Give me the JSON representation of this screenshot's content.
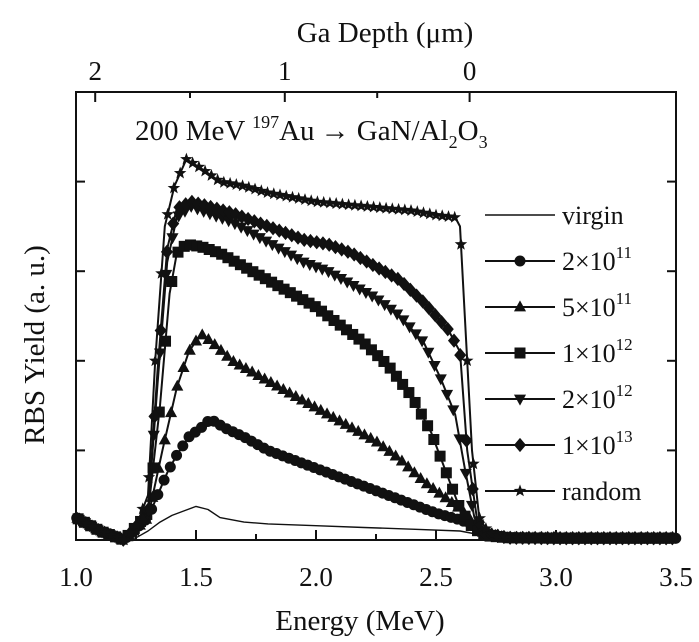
{
  "chart_data": {
    "type": "line",
    "title": "",
    "annotation": {
      "prefix": "200 MeV ",
      "mass": "197",
      "element": "Au",
      "arrow": "→",
      "target_a": " GaN/Al",
      "sub_a": "2",
      "target_b": "O",
      "sub_b": "3"
    },
    "xlabel": "Energy (MeV)",
    "ylabel": "RBS Yield (a. u.)",
    "top_axis_label": "Ga Depth (μm)",
    "xlim": [
      1.0,
      3.5
    ],
    "ylim": [
      0,
      1.0
    ],
    "x_ticks": [
      1.0,
      1.5,
      2.0,
      2.5,
      3.0,
      3.5
    ],
    "x_tick_labels": [
      "1.0",
      "1.5",
      "2.0",
      "2.5",
      "3.0",
      "3.5"
    ],
    "top_ticks": [
      {
        "energy": 1.08,
        "label": "2"
      },
      {
        "energy": 1.87,
        "label": "1"
      },
      {
        "energy": 2.64,
        "label": "0"
      }
    ],
    "y_ticks": [
      0.2,
      0.4,
      0.6,
      0.8,
      1.0
    ],
    "grid": false,
    "legend_position": "right",
    "series": [
      {
        "name": "virgin",
        "marker": "none",
        "stroke": 1.4,
        "points": [
          [
            1.0,
            0.05
          ],
          [
            1.1,
            0.02
          ],
          [
            1.2,
            0.0
          ],
          [
            1.25,
            0.005
          ],
          [
            1.3,
            0.02
          ],
          [
            1.35,
            0.04
          ],
          [
            1.4,
            0.055
          ],
          [
            1.45,
            0.065
          ],
          [
            1.5,
            0.075
          ],
          [
            1.55,
            0.068
          ],
          [
            1.6,
            0.05
          ],
          [
            1.7,
            0.04
          ],
          [
            1.8,
            0.036
          ],
          [
            2.0,
            0.032
          ],
          [
            2.2,
            0.028
          ],
          [
            2.4,
            0.024
          ],
          [
            2.6,
            0.02
          ],
          [
            2.7,
            0.01
          ],
          [
            2.8,
            0.005
          ],
          [
            3.0,
            0.004
          ],
          [
            3.5,
            0.004
          ]
        ]
      },
      {
        "name": "2×10¹¹",
        "label_base": "2×10",
        "label_exp": "11",
        "marker": "circle",
        "points": [
          [
            1.0,
            0.05
          ],
          [
            1.1,
            0.02
          ],
          [
            1.2,
            0.0
          ],
          [
            1.3,
            0.05
          ],
          [
            1.38,
            0.15
          ],
          [
            1.42,
            0.19
          ],
          [
            1.47,
            0.23
          ],
          [
            1.52,
            0.25
          ],
          [
            1.56,
            0.27
          ],
          [
            1.62,
            0.25
          ],
          [
            1.7,
            0.23
          ],
          [
            1.8,
            0.2
          ],
          [
            1.9,
            0.18
          ],
          [
            2.0,
            0.16
          ],
          [
            2.1,
            0.14
          ],
          [
            2.2,
            0.12
          ],
          [
            2.3,
            0.1
          ],
          [
            2.4,
            0.08
          ],
          [
            2.5,
            0.06
          ],
          [
            2.6,
            0.045
          ],
          [
            2.65,
            0.035
          ],
          [
            2.7,
            0.015
          ],
          [
            2.8,
            0.005
          ],
          [
            3.0,
            0.004
          ],
          [
            3.5,
            0.004
          ]
        ]
      },
      {
        "name": "5×10¹¹",
        "label_base": "5×10",
        "label_exp": "11",
        "marker": "triangle",
        "points": [
          [
            1.0,
            0.05
          ],
          [
            1.1,
            0.02
          ],
          [
            1.2,
            0.0
          ],
          [
            1.3,
            0.05
          ],
          [
            1.36,
            0.2
          ],
          [
            1.42,
            0.34
          ],
          [
            1.47,
            0.42
          ],
          [
            1.52,
            0.46
          ],
          [
            1.57,
            0.44
          ],
          [
            1.65,
            0.4
          ],
          [
            1.75,
            0.37
          ],
          [
            1.85,
            0.34
          ],
          [
            1.95,
            0.31
          ],
          [
            2.05,
            0.28
          ],
          [
            2.15,
            0.25
          ],
          [
            2.25,
            0.22
          ],
          [
            2.35,
            0.18
          ],
          [
            2.45,
            0.13
          ],
          [
            2.55,
            0.09
          ],
          [
            2.6,
            0.07
          ],
          [
            2.65,
            0.04
          ],
          [
            2.7,
            0.015
          ],
          [
            2.8,
            0.005
          ],
          [
            3.0,
            0.004
          ],
          [
            3.5,
            0.004
          ]
        ]
      },
      {
        "name": "1×10¹²",
        "label_base": "1×10",
        "label_exp": "12",
        "marker": "square",
        "points": [
          [
            1.0,
            0.05
          ],
          [
            1.1,
            0.02
          ],
          [
            1.2,
            0.0
          ],
          [
            1.3,
            0.06
          ],
          [
            1.35,
            0.3
          ],
          [
            1.39,
            0.55
          ],
          [
            1.42,
            0.64
          ],
          [
            1.46,
            0.66
          ],
          [
            1.52,
            0.655
          ],
          [
            1.6,
            0.64
          ],
          [
            1.7,
            0.61
          ],
          [
            1.8,
            0.58
          ],
          [
            1.9,
            0.55
          ],
          [
            2.0,
            0.52
          ],
          [
            2.1,
            0.48
          ],
          [
            2.2,
            0.44
          ],
          [
            2.3,
            0.39
          ],
          [
            2.4,
            0.32
          ],
          [
            2.48,
            0.24
          ],
          [
            2.55,
            0.14
          ],
          [
            2.6,
            0.07
          ],
          [
            2.65,
            0.03
          ],
          [
            2.7,
            0.01
          ],
          [
            2.8,
            0.005
          ],
          [
            3.0,
            0.004
          ],
          [
            3.5,
            0.004
          ]
        ]
      },
      {
        "name": "2×10¹²",
        "label_base": "2×10",
        "label_exp": "12",
        "marker": "triangle-down",
        "points": [
          [
            1.0,
            0.05
          ],
          [
            1.1,
            0.02
          ],
          [
            1.2,
            0.0
          ],
          [
            1.3,
            0.06
          ],
          [
            1.34,
            0.35
          ],
          [
            1.38,
            0.62
          ],
          [
            1.42,
            0.72
          ],
          [
            1.48,
            0.745
          ],
          [
            1.55,
            0.73
          ],
          [
            1.65,
            0.71
          ],
          [
            1.75,
            0.68
          ],
          [
            1.85,
            0.65
          ],
          [
            1.95,
            0.62
          ],
          [
            2.05,
            0.6
          ],
          [
            2.15,
            0.57
          ],
          [
            2.25,
            0.54
          ],
          [
            2.35,
            0.5
          ],
          [
            2.45,
            0.44
          ],
          [
            2.52,
            0.36
          ],
          [
            2.58,
            0.28
          ],
          [
            2.62,
            0.16
          ],
          [
            2.66,
            0.05
          ],
          [
            2.7,
            0.015
          ],
          [
            2.8,
            0.005
          ],
          [
            3.0,
            0.004
          ],
          [
            3.5,
            0.004
          ]
        ]
      },
      {
        "name": "1×10¹³",
        "label_base": "1×10",
        "label_exp": "13",
        "marker": "diamond",
        "points": [
          [
            1.0,
            0.05
          ],
          [
            1.1,
            0.02
          ],
          [
            1.2,
            0.0
          ],
          [
            1.3,
            0.06
          ],
          [
            1.34,
            0.38
          ],
          [
            1.38,
            0.65
          ],
          [
            1.42,
            0.74
          ],
          [
            1.48,
            0.755
          ],
          [
            1.55,
            0.745
          ],
          [
            1.65,
            0.73
          ],
          [
            1.75,
            0.71
          ],
          [
            1.85,
            0.69
          ],
          [
            1.95,
            0.67
          ],
          [
            2.05,
            0.66
          ],
          [
            2.15,
            0.64
          ],
          [
            2.25,
            0.61
          ],
          [
            2.35,
            0.58
          ],
          [
            2.45,
            0.53
          ],
          [
            2.55,
            0.47
          ],
          [
            2.6,
            0.42
          ],
          [
            2.63,
            0.2
          ],
          [
            2.67,
            0.05
          ],
          [
            2.7,
            0.015
          ],
          [
            2.8,
            0.005
          ],
          [
            3.0,
            0.004
          ],
          [
            3.5,
            0.004
          ]
        ]
      },
      {
        "name": "random",
        "marker": "star",
        "points": [
          [
            1.0,
            0.05
          ],
          [
            1.1,
            0.02
          ],
          [
            1.2,
            0.0
          ],
          [
            1.25,
            0.03
          ],
          [
            1.3,
            0.1
          ],
          [
            1.33,
            0.4
          ],
          [
            1.37,
            0.7
          ],
          [
            1.41,
            0.79
          ],
          [
            1.46,
            0.85
          ],
          [
            1.52,
            0.83
          ],
          [
            1.6,
            0.8
          ],
          [
            1.7,
            0.79
          ],
          [
            1.8,
            0.775
          ],
          [
            1.9,
            0.765
          ],
          [
            2.0,
            0.755
          ],
          [
            2.1,
            0.75
          ],
          [
            2.2,
            0.745
          ],
          [
            2.3,
            0.74
          ],
          [
            2.4,
            0.735
          ],
          [
            2.5,
            0.725
          ],
          [
            2.58,
            0.72
          ],
          [
            2.6,
            0.7
          ],
          [
            2.62,
            0.5
          ],
          [
            2.65,
            0.2
          ],
          [
            2.68,
            0.05
          ],
          [
            2.72,
            0.015
          ],
          [
            2.8,
            0.005
          ],
          [
            3.0,
            0.004
          ],
          [
            3.5,
            0.004
          ]
        ]
      }
    ]
  }
}
